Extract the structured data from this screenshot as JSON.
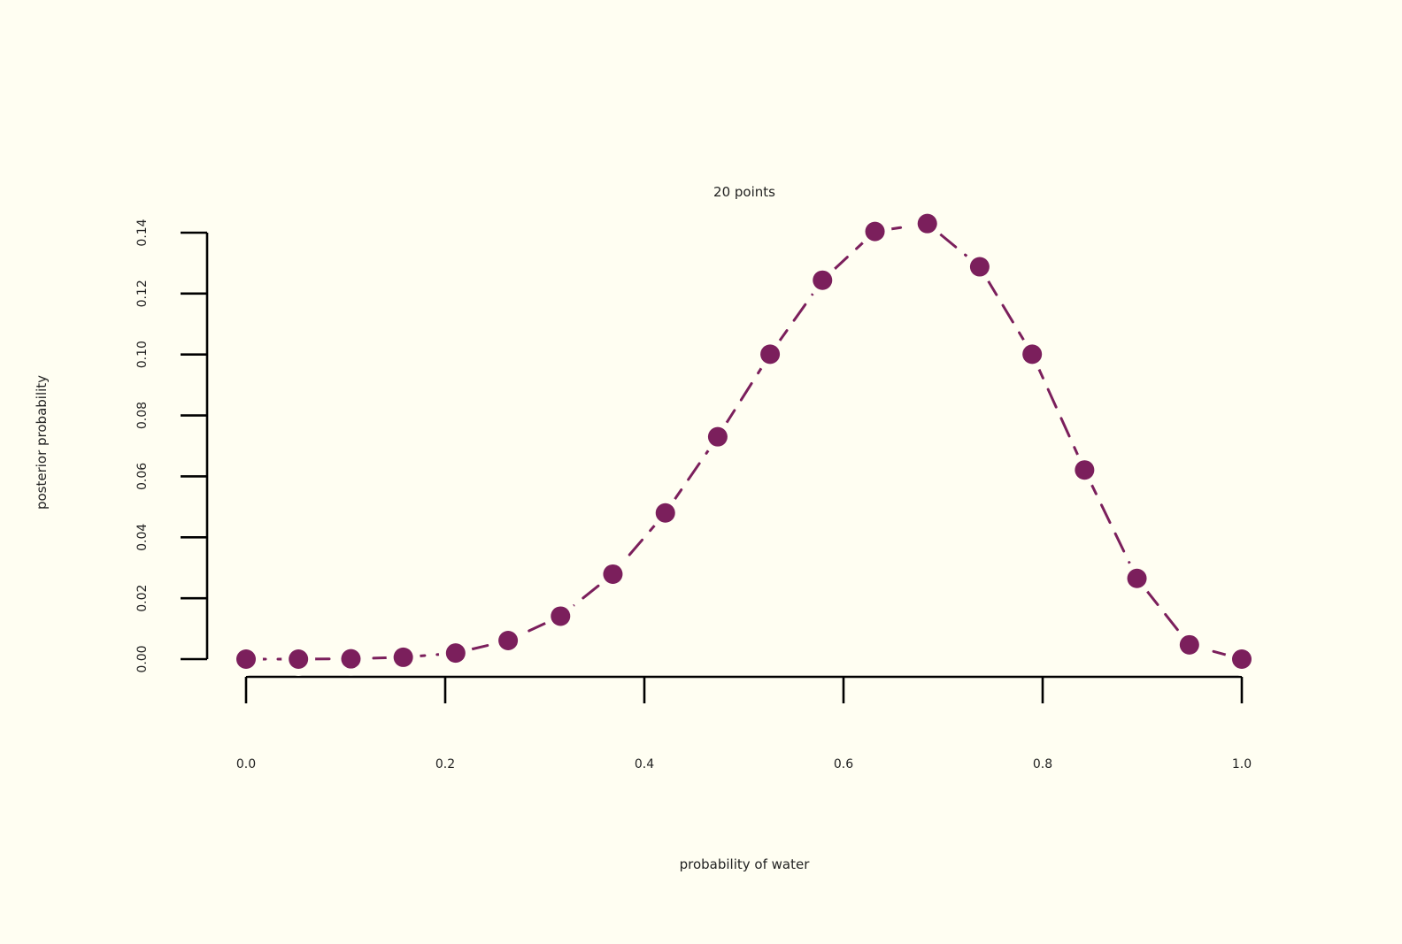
{
  "chart_data": {
    "type": "line",
    "title": "20 points",
    "xlabel": "probability of water",
    "ylabel": "posterior probability",
    "xlim": [
      0,
      1
    ],
    "ylim": [
      0,
      0.14
    ],
    "x_ticks": [
      "0.0",
      "0.2",
      "0.4",
      "0.6",
      "0.8",
      "1.0"
    ],
    "y_ticks": [
      "0.00",
      "0.02",
      "0.04",
      "0.06",
      "0.08",
      "0.10",
      "0.12",
      "0.14"
    ],
    "grid": false,
    "color": "#7B1F5C",
    "series": [
      {
        "x": [
          0,
          0.0526,
          0.1053,
          0.1579,
          0.2105,
          0.2632,
          0.3158,
          0.3684,
          0.4211,
          0.4737,
          0.5263,
          0.5789,
          0.6316,
          0.6842,
          0.7368,
          0.7895,
          0.8421,
          0.8947,
          0.9474,
          1.0
        ],
        "values": [
          0.0,
          0.0,
          0.0001,
          0.0006,
          0.002,
          0.0061,
          0.0141,
          0.0279,
          0.048,
          0.073,
          0.1001,
          0.1244,
          0.1404,
          0.143,
          0.1288,
          0.1001,
          0.0621,
          0.0265,
          0.0047,
          0.0
        ]
      }
    ]
  }
}
